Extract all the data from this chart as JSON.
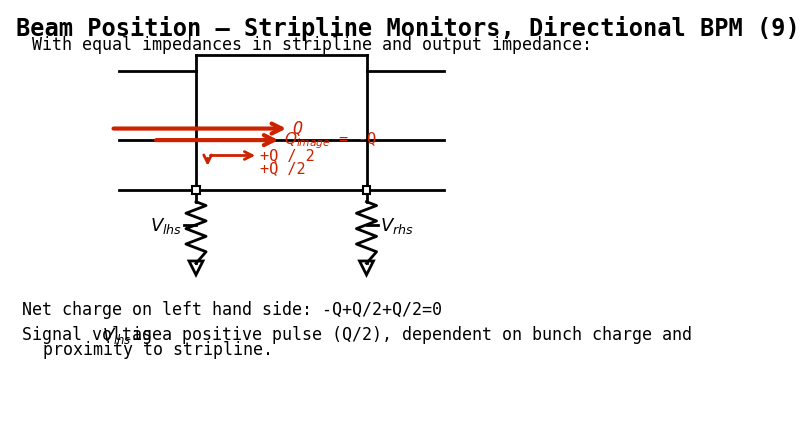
{
  "title": "Beam Position – Stripline Monitors, Directional BPM (9)",
  "subtitle": "With equal impedances in stripline and output impedance:",
  "note1": "Net charge on left hand side: -Q+Q/2+Q/2=0",
  "bg_color": "#ffffff",
  "line_color": "#000000",
  "arrow_color": "#cc2200",
  "title_fontsize": 17,
  "subtitle_fontsize": 12,
  "body_fontsize": 12
}
